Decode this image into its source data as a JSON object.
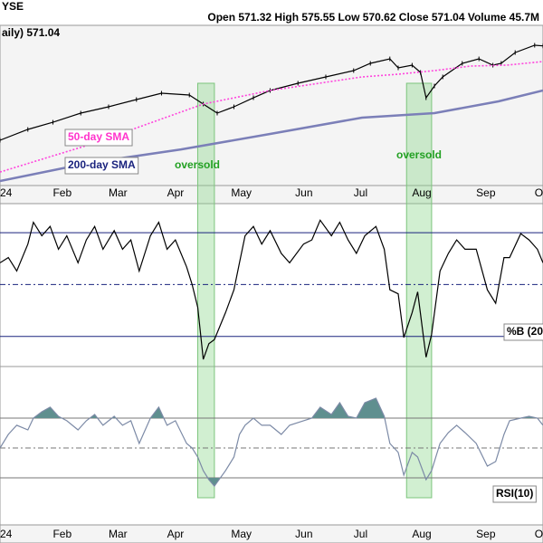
{
  "chart_data": [
    {
      "type": "line",
      "exchange_label": "YSE",
      "quote": "Open 571.32 High 575.55 Low 570.62 Close 571.04 Volume 45.7M",
      "xlim": [
        0,
        195
      ],
      "xticks": [
        {
          "value": 0,
          "label": "24"
        },
        {
          "value": 19,
          "label": "Feb"
        },
        {
          "value": 39,
          "label": "Mar"
        },
        {
          "value": 60,
          "label": "Apr"
        },
        {
          "value": 83,
          "label": "May"
        },
        {
          "value": 106,
          "label": "Jun"
        },
        {
          "value": 127,
          "label": "Jul"
        },
        {
          "value": 148,
          "label": "Aug"
        },
        {
          "value": 171,
          "label": "Sep"
        },
        {
          "value": 192,
          "label": "O"
        }
      ],
      "ylim": [
        410,
        624
      ],
      "highlight_ranges": [
        [
          71,
          77
        ],
        [
          146,
          155
        ]
      ],
      "annotations": [
        "oversold",
        "oversold"
      ],
      "series": [
        {
          "name": "aily) 571.04",
          "color": "#000000",
          "x": [
            0,
            10,
            19,
            29,
            39,
            49,
            58,
            68,
            73,
            78,
            84,
            91,
            97,
            107,
            117,
            127,
            133,
            140,
            143,
            148,
            151,
            153,
            156,
            159,
            166,
            172,
            177,
            180,
            185,
            192,
            195
          ],
          "values": [
            462.2,
            474.7,
            483,
            493.5,
            500.8,
            509.2,
            516.5,
            514.4,
            504,
            493.5,
            500.8,
            511.2,
            519.6,
            528,
            535.3,
            542.6,
            550.9,
            556.1,
            545.7,
            548.8,
            540.5,
            511.2,
            524.8,
            535.3,
            550.9,
            556.1,
            548.8,
            550.9,
            563.4,
            571.8,
            571.04
          ]
        },
        {
          "name": "50-day SMA",
          "color": "#ff44dd",
          "x": [
            0,
            32,
            73,
            97,
            130,
            143,
            156,
            169,
            182,
            195
          ],
          "values": [
            425.6,
            457,
            504,
            519.6,
            535.3,
            538.4,
            542.6,
            547.8,
            548.8,
            553
          ]
        },
        {
          "name": "200-day SMA",
          "color": "#7b7fb8",
          "x": [
            0,
            32,
            65,
            97,
            130,
            156,
            179,
            195
          ],
          "values": [
            415.2,
            436.1,
            451.7,
            469.5,
            488.3,
            493.5,
            507.1,
            519.6
          ]
        }
      ]
    },
    {
      "type": "line",
      "ylim": [
        -0.29,
        1.28
      ],
      "hlines": [
        0,
        0.5,
        1
      ],
      "series": [
        {
          "name": "%B (20",
          "color": "#000000",
          "x": [
            0,
            3,
            6,
            10,
            12,
            15,
            18,
            21,
            24,
            28,
            31,
            34,
            37,
            41,
            44,
            47,
            50,
            54,
            57,
            60,
            63,
            67,
            69,
            71,
            73,
            75,
            77,
            81,
            84,
            86,
            88,
            91,
            94,
            97,
            101,
            104,
            109,
            112,
            115,
            119,
            122,
            125,
            128,
            131,
            135,
            138,
            140,
            143,
            145,
            148,
            150,
            153,
            155,
            158,
            161,
            164,
            167,
            171,
            175,
            178,
            181,
            183,
            187,
            190,
            193,
            195
          ],
          "values": [
            0.71,
            0.76,
            0.63,
            0.89,
            1.1,
            0.97,
            1.06,
            0.84,
            0.97,
            0.71,
            0.93,
            1.06,
            0.84,
            1.02,
            0.84,
            0.93,
            0.63,
            0.97,
            1.1,
            0.84,
            0.93,
            0.67,
            0.5,
            0.28,
            -0.22,
            -0.07,
            -0.03,
            0.23,
            0.45,
            0.71,
            0.97,
            1.06,
            0.89,
            1.02,
            0.8,
            0.71,
            0.89,
            0.93,
            1.12,
            0.97,
            1.1,
            0.93,
            0.8,
            0.97,
            1.06,
            0.84,
            0.45,
            0.41,
            -0.01,
            0.23,
            0.43,
            -0.2,
            0.02,
            0.63,
            0.8,
            0.93,
            0.84,
            0.84,
            0.45,
            0.32,
            0.76,
            0.76,
            0.99,
            0.93,
            0.84,
            0.71
          ]
        }
      ]
    },
    {
      "type": "line",
      "ylim": [
        -1.5,
        104.5
      ],
      "hlines": [
        30,
        50,
        70
      ],
      "fill_color": "#5f8f8f",
      "series": [
        {
          "name": "RSI(10)",
          "color": "#7c8aa6",
          "x": [
            0,
            3,
            6,
            10,
            12,
            15,
            18,
            21,
            24,
            28,
            31,
            34,
            37,
            41,
            44,
            47,
            50,
            54,
            57,
            60,
            63,
            67,
            69,
            71,
            73,
            75,
            77,
            81,
            84,
            86,
            88,
            91,
            94,
            97,
            101,
            104,
            109,
            112,
            115,
            119,
            122,
            125,
            128,
            131,
            135,
            138,
            140,
            143,
            145,
            148,
            150,
            153,
            155,
            158,
            161,
            164,
            167,
            171,
            175,
            178,
            181,
            183,
            187,
            190,
            193,
            195
          ],
          "values": [
            50,
            59.1,
            65.2,
            62.1,
            70.0,
            74.2,
            77.3,
            71.2,
            68.2,
            62.1,
            68.2,
            72.4,
            65.2,
            71.2,
            65.2,
            68.2,
            53.0,
            70.0,
            77.3,
            65.2,
            68.2,
            53.0,
            50.0,
            43.9,
            34.8,
            28.8,
            24.5,
            34.8,
            43.9,
            59.1,
            65.2,
            70.0,
            65.2,
            65.2,
            59.1,
            65.2,
            68.2,
            70.0,
            77.3,
            72.4,
            80.3,
            71.2,
            70.0,
            80.3,
            83.3,
            71.2,
            53.0,
            47.0,
            31.8,
            47.0,
            43.9,
            28.8,
            34.8,
            53.0,
            60.3,
            65.2,
            60.3,
            53.0,
            37.9,
            40.9,
            59.1,
            68.2,
            70.0,
            71.2,
            70.0,
            65.2
          ]
        }
      ]
    }
  ]
}
